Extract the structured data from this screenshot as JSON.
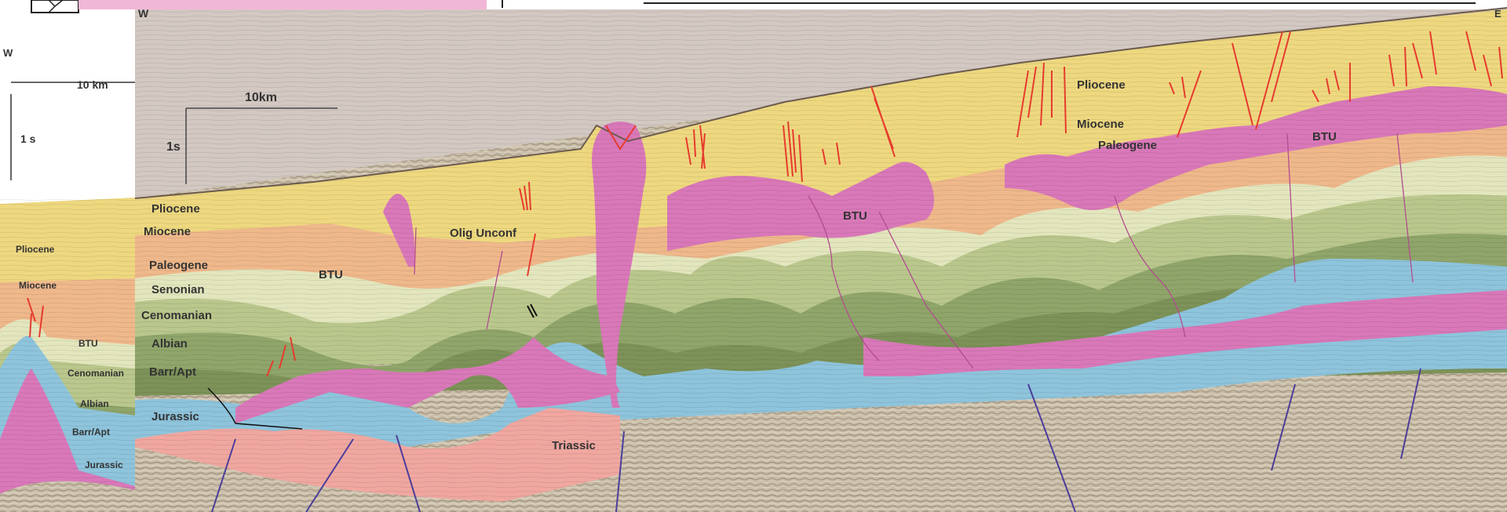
{
  "top_strip": {
    "direction_label": "W",
    "east_label": "E"
  },
  "inset": {
    "direction_label": "W",
    "scale_km": "10 km",
    "scale_time": "1 s",
    "units": [
      "Pliocene",
      "Miocene",
      "BTU",
      "Cenomanian",
      "Albian",
      "Barr/Apt",
      "Jurassic"
    ]
  },
  "main": {
    "scale_km": "10km",
    "scale_time": "1s",
    "left_units": [
      "Pliocene",
      "Miocene",
      "Paleogene",
      "Senonian",
      "Cenomanian",
      "Albian",
      "Barr/Apt",
      "Jurassic"
    ],
    "labels": {
      "btu_1": "BTU",
      "olig_unconf": "Olig Unconf",
      "triassic": "Triassic",
      "btu_2": "BTU",
      "pliocene_right": "Pliocene",
      "miocene_right": "Miocene",
      "paleogene_right": "Paleogene",
      "btu_3": "BTU"
    }
  },
  "colors": {
    "sky": "#d3c8c2",
    "pliocene": "#eed87f",
    "miocene": "#f0dd90",
    "paleogene": "#efb88b",
    "btu": "#d978b9",
    "senonian": "#e3e6bd",
    "cenomanian": "#b9c78c",
    "albian": "#8fa56a",
    "barr_apt": "#7d9258",
    "jurassic": "#8ec4dc",
    "triassic": "#f0a7a0",
    "basement": "#c9bea9",
    "fault_red": "#e63b2e",
    "fault_blue": "#4b3d9b",
    "fault_pink": "#b24c8f"
  }
}
